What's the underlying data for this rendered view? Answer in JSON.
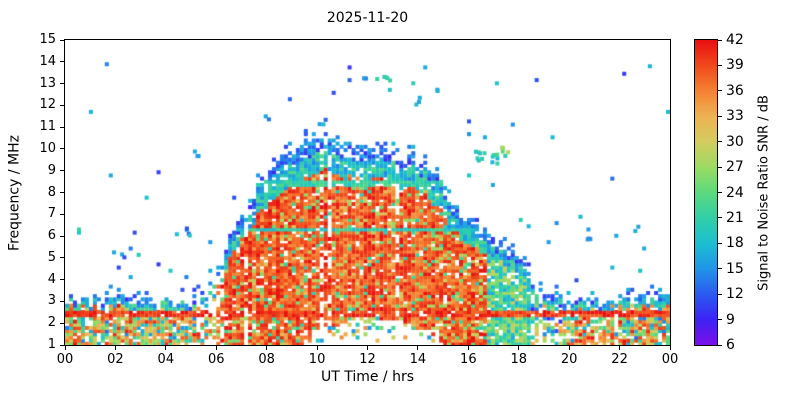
{
  "chart_data": {
    "type": "heatmap",
    "title": "2025-11-20",
    "xlabel": "UT Time / hrs",
    "ylabel": "Frequency / MHz",
    "colorbar_label": "Signal to Noise Ratio SNR / dB",
    "x_range": [
      0,
      24
    ],
    "x_tick_values": [
      0,
      2,
      4,
      6,
      8,
      10,
      12,
      14,
      16,
      18,
      20,
      22,
      24
    ],
    "x_tick_labels": [
      "00",
      "02",
      "04",
      "06",
      "08",
      "10",
      "12",
      "14",
      "16",
      "18",
      "20",
      "22",
      "00"
    ],
    "y_range": [
      1,
      15
    ],
    "y_tick_values": [
      1,
      2,
      3,
      4,
      5,
      6,
      7,
      8,
      9,
      10,
      11,
      12,
      13,
      14,
      15
    ],
    "snr_range": [
      6,
      42
    ],
    "colorbar_tick_values": [
      6,
      9,
      12,
      15,
      18,
      21,
      24,
      27,
      30,
      33,
      36,
      39,
      42
    ],
    "grid": false,
    "background": "#ffffff",
    "frame_color": "#000000",
    "colormap": [
      {
        "v": 6,
        "c": "#7a10e8"
      },
      {
        "v": 9,
        "c": "#3c24f5"
      },
      {
        "v": 12,
        "c": "#2b5cf0"
      },
      {
        "v": 15,
        "c": "#2196e8"
      },
      {
        "v": 18,
        "c": "#1cbfd0"
      },
      {
        "v": 21,
        "c": "#32cfa8"
      },
      {
        "v": 24,
        "c": "#5cd97d"
      },
      {
        "v": 27,
        "c": "#9cdb63"
      },
      {
        "v": 30,
        "c": "#d3cc5e"
      },
      {
        "v": 33,
        "c": "#edb352"
      },
      {
        "v": 36,
        "c": "#f58233"
      },
      {
        "v": 39,
        "c": "#f04a1c"
      },
      {
        "v": 42,
        "c": "#e81111"
      }
    ],
    "envelope": {
      "hours": [
        0,
        1,
        2,
        3,
        4,
        5,
        5.5,
        6,
        6.3,
        6.6,
        7,
        7.5,
        8,
        8.5,
        9,
        9.5,
        10,
        10.3,
        10.7,
        11,
        11.5,
        12,
        12.5,
        13,
        13.5,
        14,
        14.3,
        14.7,
        15,
        15.5,
        16,
        16.5,
        17,
        17.5,
        18,
        18.3,
        18.6,
        19,
        20,
        21,
        22,
        23,
        24
      ],
      "fmax": [
        3.2,
        3.1,
        3.1,
        3.0,
        3.0,
        3.0,
        3.1,
        4.2,
        5.0,
        6.0,
        7.0,
        8.0,
        8.9,
        9.5,
        9.9,
        10.2,
        10.5,
        10.6,
        10.4,
        10.2,
        10.1,
        10.0,
        9.9,
        9.9,
        9.7,
        9.6,
        9.3,
        8.8,
        8.3,
        7.4,
        6.7,
        6.3,
        5.8,
        5.5,
        5.3,
        4.6,
        3.6,
        3.3,
        3.1,
        3.0,
        3.1,
        3.2,
        3.2
      ],
      "fmin": [
        1,
        1,
        1,
        1,
        1,
        1,
        1,
        1,
        1,
        1,
        1,
        1,
        1,
        1,
        1,
        1.2,
        1.7,
        1.9,
        2.0,
        2.1,
        2.2,
        2.3,
        2.3,
        2.2,
        2.1,
        1.9,
        1.7,
        1.4,
        1.1,
        1,
        1,
        1,
        1,
        1,
        1,
        1,
        1,
        1,
        1,
        1,
        1,
        1,
        1
      ]
    },
    "spur_lines": [
      {
        "f": 2.45,
        "t0": 0,
        "t1": 24,
        "snr": 40,
        "width": 0.1
      },
      {
        "f": 6.3,
        "t0": 6.8,
        "t1": 16.3,
        "snr": 20,
        "width": 0.09
      },
      {
        "f": 8.45,
        "t0": 7.2,
        "t1": 15.0,
        "snr": 21,
        "width": 0.09
      }
    ],
    "clusters": [
      {
        "t": 12.6,
        "f": 13.1,
        "n": 6,
        "st": 0.35,
        "sf": 0.4,
        "snr": 18
      },
      {
        "t": 13.9,
        "f": 12.3,
        "n": 3,
        "st": 0.2,
        "sf": 0.2,
        "snr": 15
      },
      {
        "t": 16.6,
        "f": 9.7,
        "n": 12,
        "st": 0.5,
        "sf": 0.35,
        "snr": 21
      },
      {
        "t": 17.3,
        "f": 9.9,
        "n": 6,
        "st": 0.3,
        "sf": 0.3,
        "snr": 24
      },
      {
        "t": 4.6,
        "f": 6.3,
        "n": 5,
        "st": 0.3,
        "sf": 0.25,
        "snr": 15
      },
      {
        "t": 5.1,
        "f": 9.9,
        "n": 3,
        "st": 0.2,
        "sf": 0.15,
        "snr": 13
      },
      {
        "t": 2.0,
        "f": 5.2,
        "n": 3,
        "st": 0.3,
        "sf": 0.3,
        "snr": 13
      },
      {
        "t": 10.1,
        "f": 11.3,
        "n": 3,
        "st": 0.2,
        "sf": 0.2,
        "snr": 14
      },
      {
        "t": 7.9,
        "f": 11.6,
        "n": 2,
        "st": 0.15,
        "sf": 0.15,
        "snr": 13
      },
      {
        "t": 20.6,
        "f": 5.9,
        "n": 3,
        "st": 0.25,
        "sf": 0.3,
        "snr": 13
      },
      {
        "t": 22.6,
        "f": 6.4,
        "n": 2,
        "st": 0.2,
        "sf": 0.2,
        "snr": 14
      },
      {
        "t": 23.1,
        "f": 13.9,
        "n": 1,
        "st": 0.1,
        "sf": 0.1,
        "snr": 16
      },
      {
        "t": 11.9,
        "f": 13.2,
        "n": 2,
        "st": 0.15,
        "sf": 0.2,
        "snr": 17
      },
      {
        "t": 14.6,
        "f": 12.7,
        "n": 2,
        "st": 0.2,
        "sf": 0.2,
        "snr": 15
      }
    ],
    "render": {
      "seed": 7,
      "cols": 152,
      "rows": 96,
      "speck_probability": 0.004
    }
  }
}
